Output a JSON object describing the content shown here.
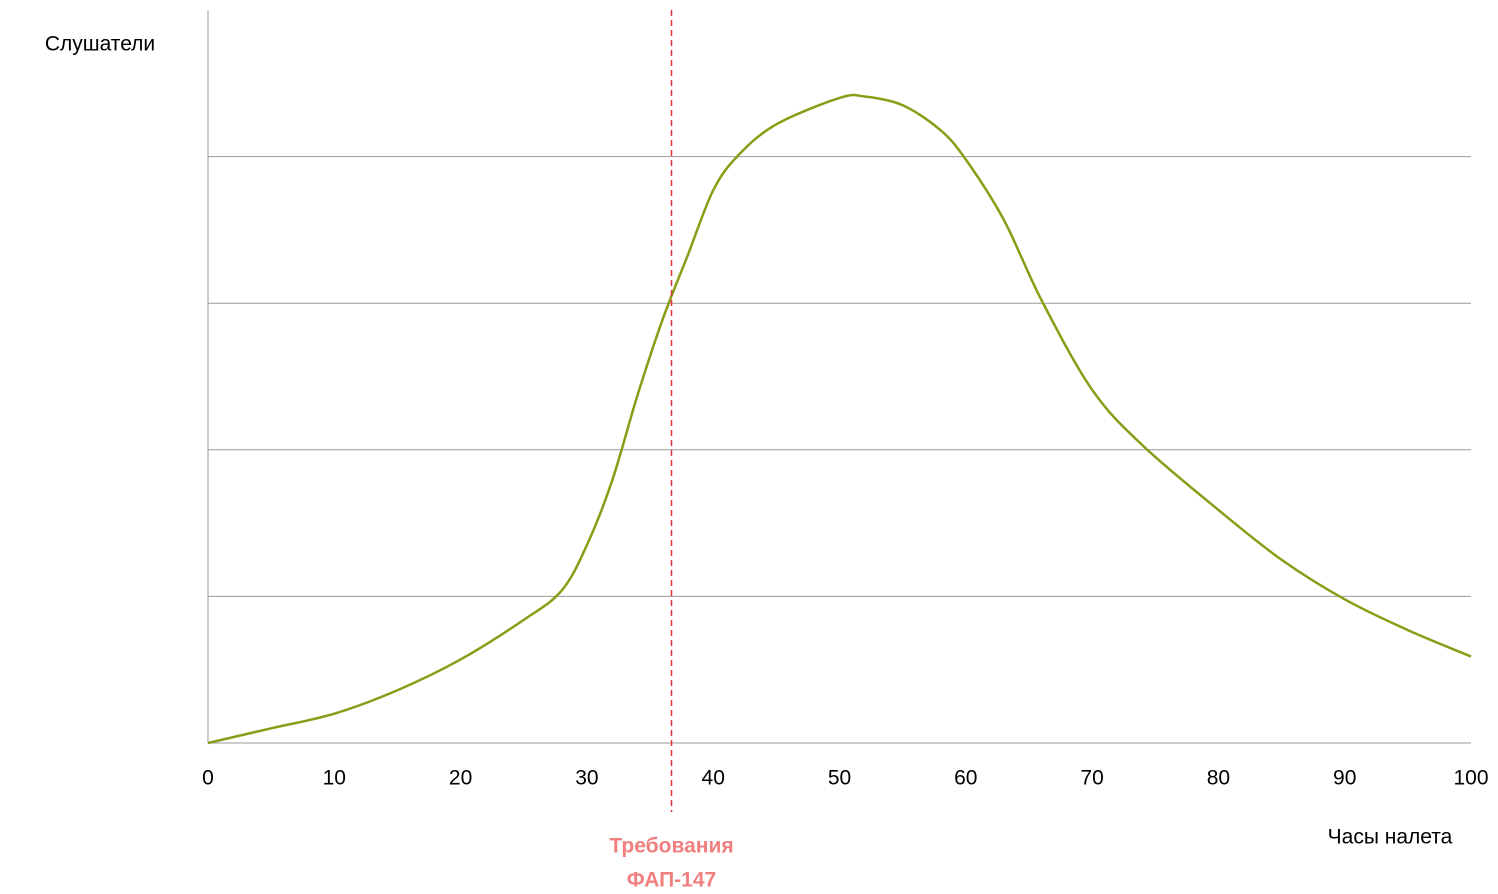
{
  "chart_data": {
    "type": "line",
    "y_label": "Слушатели",
    "x_label": "Часы налета",
    "x": [
      0,
      5,
      10,
      15,
      20,
      25,
      28,
      30,
      32,
      34,
      36,
      38,
      40,
      42,
      45,
      50,
      52,
      55,
      58,
      60,
      63,
      66,
      70,
      74,
      80,
      85,
      90,
      95,
      100
    ],
    "series": [
      {
        "color": "#8b9c16",
        "values": [
          0,
          0.1,
          0.2,
          0.36,
          0.57,
          0.84,
          1.04,
          1.35,
          1.79,
          2.37,
          2.89,
          3.33,
          3.77,
          4.01,
          4.22,
          4.4,
          4.41,
          4.35,
          4.18,
          3.98,
          3.57,
          3.02,
          2.41,
          2.03,
          1.59,
          1.25,
          0.98,
          0.77,
          0.59
        ]
      }
    ],
    "xlim": [
      0,
      100
    ],
    "xticks": [
      0,
      10,
      20,
      30,
      40,
      50,
      60,
      70,
      80,
      90,
      100
    ],
    "ylim": [
      0,
      5
    ],
    "yticks": [
      0,
      1,
      2,
      3,
      4
    ],
    "grid": true,
    "annotation": {
      "x": 36.7,
      "color": "#e0303a",
      "text_color": "#f08080",
      "lines": [
        "Требования",
        "ФАП-147"
      ]
    }
  }
}
